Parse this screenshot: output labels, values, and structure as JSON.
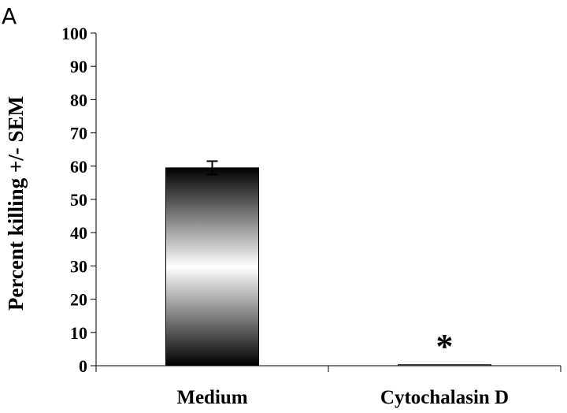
{
  "panel_label": "A",
  "chart_data": {
    "type": "bar",
    "title": "",
    "xlabel": "",
    "ylabel": "Percent killing +/- SEM",
    "categories": [
      "Medium",
      "Cytochalasin D"
    ],
    "values": [
      59.5,
      0.3
    ],
    "errors": [
      2,
      0
    ],
    "annotations": [
      "",
      "*"
    ],
    "ylim": [
      0,
      100
    ],
    "yticks": [
      0,
      10,
      20,
      30,
      40,
      50,
      60,
      70,
      80,
      90,
      100
    ],
    "grid": false,
    "legend": "none",
    "bar_fill": "vertical gradient black-white-black",
    "colors": {
      "bar_dark": "#000000",
      "bar_light": "#ffffff",
      "axis": "#000000"
    }
  }
}
